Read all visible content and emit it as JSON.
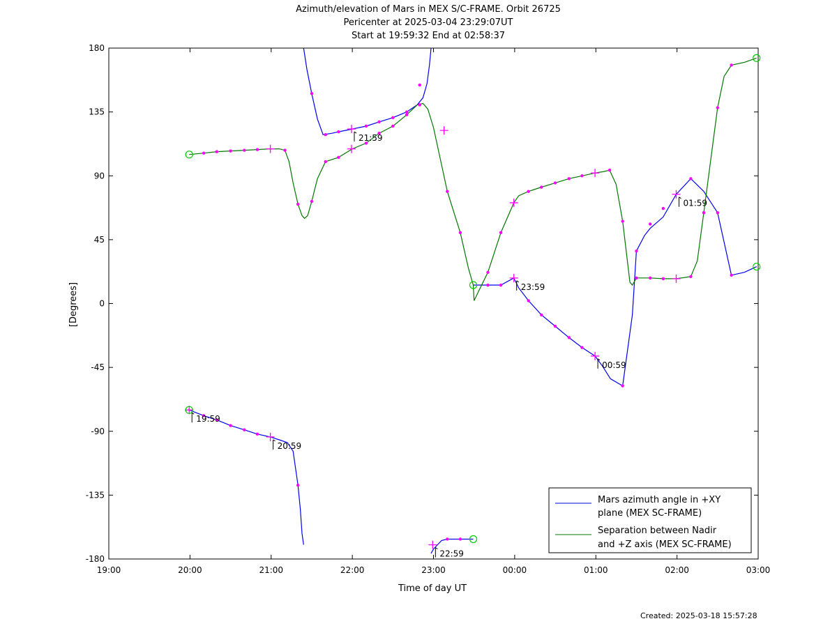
{
  "chart_data": {
    "type": "line",
    "title": [
      "Azimuth/elevation of Mars in MEX S/C-FRAME.  Orbit 26725",
      "Pericenter at 2025-03-04 23:29:07UT",
      "Start at 19:59:32 End at 02:58:37"
    ],
    "xlabel": "Time of day UT",
    "ylabel": "[Degrees]",
    "xlim": [
      19.0,
      27.0
    ],
    "ylim": [
      -180,
      180
    ],
    "x_ticks": [
      19,
      20,
      21,
      22,
      23,
      24,
      25,
      26,
      27
    ],
    "x_tick_labels": [
      "19:00",
      "20:00",
      "21:00",
      "22:00",
      "23:00",
      "00:00",
      "01:00",
      "02:00",
      "03:00"
    ],
    "y_ticks": [
      180,
      135,
      90,
      45,
      0,
      -45,
      -90,
      -135,
      -180
    ],
    "y_tick_labels": [
      "180",
      "135",
      "90",
      "45",
      "0",
      "-45",
      "-90",
      "-135",
      "-180"
    ],
    "legend_position": "bottom-right",
    "series": [
      {
        "name": "Mars azimuth angle in +XY plane (MEX SC-FRAME)",
        "legend_lines": [
          "Mars azimuth angle in +XY",
          "plane (MEX SC-FRAME)"
        ],
        "color": "#0000ee",
        "segments": [
          [
            [
              19.99,
              -75
            ],
            [
              20.17,
              -79
            ],
            [
              20.33,
              -82
            ],
            [
              20.5,
              -86
            ],
            [
              20.67,
              -89
            ],
            [
              20.83,
              -92
            ],
            [
              20.99,
              -94
            ],
            [
              21.1,
              -96
            ],
            [
              21.2,
              -98
            ],
            [
              21.27,
              -104
            ],
            [
              21.33,
              -128
            ],
            [
              21.36,
              -145
            ],
            [
              21.38,
              -162
            ],
            [
              21.4,
              -170
            ]
          ],
          [
            [
              21.4,
              180
            ],
            [
              21.44,
              165
            ],
            [
              21.5,
              148
            ],
            [
              21.57,
              130
            ],
            [
              21.64,
              119
            ],
            [
              21.75,
              120
            ],
            [
              21.83,
              121
            ],
            [
              22.0,
              123
            ],
            [
              22.17,
              125
            ],
            [
              22.33,
              128
            ],
            [
              22.5,
              131
            ],
            [
              22.67,
              135
            ],
            [
              22.8,
              140
            ],
            [
              22.87,
              145
            ],
            [
              22.92,
              155
            ],
            [
              22.95,
              168
            ],
            [
              22.97,
              180
            ]
          ],
          [
            [
              22.97,
              -176
            ],
            [
              23.0,
              -173
            ],
            [
              23.1,
              -167
            ],
            [
              23.17,
              -166
            ],
            [
              23.33,
              -166
            ],
            [
              23.49,
              -166
            ]
          ],
          [
            [
              23.49,
              13
            ],
            [
              23.67,
              13
            ],
            [
              23.83,
              13
            ],
            [
              23.99,
              18
            ],
            [
              24.05,
              11
            ],
            [
              24.17,
              2
            ],
            [
              24.33,
              -8
            ],
            [
              24.5,
              -16
            ],
            [
              24.67,
              -24
            ],
            [
              24.83,
              -31
            ],
            [
              24.99,
              -37
            ],
            [
              25.08,
              -44
            ],
            [
              25.18,
              -53
            ],
            [
              25.33,
              -58
            ],
            [
              25.45,
              -8
            ],
            [
              25.5,
              37
            ],
            [
              25.6,
              48
            ],
            [
              25.67,
              53
            ],
            [
              25.83,
              61
            ],
            [
              25.99,
              77
            ],
            [
              26.17,
              88
            ],
            [
              26.33,
              79
            ],
            [
              26.5,
              64
            ],
            [
              26.67,
              20
            ],
            [
              26.83,
              22
            ],
            [
              26.98,
              26
            ]
          ]
        ]
      },
      {
        "name": "Separation between Nadir and +Z axis (MEX SC-FRAME)",
        "legend_lines": [
          "Separation between Nadir",
          "and +Z axis (MEX SC-FRAME)"
        ],
        "color": "#007700",
        "segments": [
          [
            [
              19.99,
              105
            ],
            [
              20.17,
              106
            ],
            [
              20.33,
              107
            ],
            [
              20.5,
              107.5
            ],
            [
              20.67,
              108
            ],
            [
              20.83,
              108.5
            ],
            [
              20.99,
              109
            ],
            [
              21.1,
              109
            ],
            [
              21.17,
              108
            ],
            [
              21.22,
              100
            ],
            [
              21.27,
              85
            ],
            [
              21.33,
              70
            ],
            [
              21.38,
              62
            ],
            [
              21.41,
              60
            ],
            [
              21.45,
              62
            ],
            [
              21.5,
              72
            ],
            [
              21.57,
              88
            ],
            [
              21.67,
              100
            ],
            [
              21.83,
              103
            ],
            [
              22.0,
              109
            ],
            [
              22.17,
              113
            ],
            [
              22.33,
              120
            ],
            [
              22.5,
              125
            ],
            [
              22.67,
              133
            ],
            [
              22.8,
              140
            ],
            [
              22.87,
              141
            ],
            [
              22.93,
              137
            ],
            [
              23.0,
              124
            ],
            [
              23.17,
              79
            ],
            [
              23.33,
              50
            ],
            [
              23.43,
              25
            ],
            [
              23.49,
              13
            ],
            [
              23.5,
              2
            ],
            [
              23.55,
              8
            ],
            [
              23.67,
              22
            ],
            [
              23.83,
              50
            ],
            [
              23.99,
              71
            ],
            [
              24.05,
              76
            ],
            [
              24.17,
              79
            ],
            [
              24.33,
              82
            ],
            [
              24.5,
              85
            ],
            [
              24.67,
              88
            ],
            [
              24.83,
              90
            ],
            [
              24.99,
              92
            ],
            [
              25.1,
              93
            ],
            [
              25.17,
              94
            ],
            [
              25.25,
              84
            ],
            [
              25.33,
              58
            ],
            [
              25.38,
              34
            ],
            [
              25.42,
              15
            ],
            [
              25.45,
              13
            ],
            [
              25.5,
              18
            ],
            [
              25.67,
              18
            ],
            [
              25.83,
              17.5
            ],
            [
              25.99,
              17.5
            ],
            [
              26.17,
              19
            ],
            [
              26.25,
              30
            ],
            [
              26.33,
              64
            ],
            [
              26.5,
              138
            ],
            [
              26.58,
              160
            ],
            [
              26.67,
              168
            ],
            [
              26.83,
              170
            ],
            [
              26.98,
              173
            ]
          ]
        ]
      }
    ],
    "point_markers": {
      "color": "#ff00ff",
      "points": [
        [
          20.17,
          -79
        ],
        [
          20.33,
          -82
        ],
        [
          20.5,
          -86
        ],
        [
          20.67,
          -89
        ],
        [
          20.83,
          -92
        ],
        [
          21.33,
          -128
        ],
        [
          21.5,
          148
        ],
        [
          21.67,
          119
        ],
        [
          21.83,
          121
        ],
        [
          22.17,
          125
        ],
        [
          22.33,
          128
        ],
        [
          22.5,
          131
        ],
        [
          22.67,
          135
        ],
        [
          22.83,
          140
        ],
        [
          22.83,
          154
        ],
        [
          23.17,
          -166
        ],
        [
          23.33,
          -166
        ],
        [
          23.67,
          13
        ],
        [
          23.83,
          13
        ],
        [
          24.17,
          2
        ],
        [
          24.33,
          -8
        ],
        [
          24.5,
          -16
        ],
        [
          24.67,
          -24
        ],
        [
          24.83,
          -31
        ],
        [
          25.33,
          -58
        ],
        [
          25.5,
          37
        ],
        [
          25.67,
          56
        ],
        [
          25.83,
          67
        ],
        [
          26.17,
          88
        ],
        [
          26.33,
          64
        ],
        [
          26.5,
          64
        ],
        [
          26.67,
          20
        ],
        [
          20.17,
          106
        ],
        [
          20.33,
          107
        ],
        [
          20.5,
          107.5
        ],
        [
          20.67,
          108
        ],
        [
          20.83,
          108.5
        ],
        [
          21.17,
          108
        ],
        [
          21.33,
          70
        ],
        [
          21.5,
          72
        ],
        [
          21.67,
          100
        ],
        [
          21.83,
          103
        ],
        [
          22.17,
          113
        ],
        [
          22.33,
          120
        ],
        [
          22.5,
          125
        ],
        [
          22.67,
          133
        ],
        [
          22.83,
          140
        ],
        [
          23.17,
          79
        ],
        [
          23.33,
          50
        ],
        [
          23.67,
          22
        ],
        [
          23.83,
          50
        ],
        [
          24.17,
          79
        ],
        [
          24.33,
          82
        ],
        [
          24.5,
          85
        ],
        [
          24.67,
          88
        ],
        [
          24.83,
          90
        ],
        [
          25.17,
          94
        ],
        [
          25.33,
          58
        ],
        [
          25.5,
          18
        ],
        [
          25.67,
          18
        ],
        [
          25.83,
          17.5
        ],
        [
          26.17,
          19
        ],
        [
          26.33,
          64
        ],
        [
          26.5,
          138
        ],
        [
          26.67,
          168
        ]
      ]
    },
    "hour_markers": {
      "color": "#ff00ff",
      "points": [
        [
          19.99,
          -75
        ],
        [
          20.99,
          -94
        ],
        [
          21.99,
          123
        ],
        [
          22.99,
          -170
        ],
        [
          23.99,
          18
        ],
        [
          24.99,
          -37
        ],
        [
          25.99,
          77
        ],
        [
          20.99,
          109
        ],
        [
          21.99,
          109
        ],
        [
          23.13,
          122
        ],
        [
          23.99,
          71
        ],
        [
          24.99,
          92
        ],
        [
          25.99,
          17.5
        ]
      ]
    },
    "endpoint_markers": {
      "color": "#00cc00",
      "points": [
        [
          19.99,
          -75
        ],
        [
          19.99,
          105
        ],
        [
          23.49,
          -166
        ],
        [
          23.49,
          13
        ],
        [
          26.98,
          26
        ],
        [
          26.98,
          173
        ]
      ]
    },
    "annotations": [
      {
        "label": "19:59",
        "x": 19.99,
        "y": -75
      },
      {
        "label": "20:59",
        "x": 20.99,
        "y": -94
      },
      {
        "label": "21:59",
        "x": 21.99,
        "y": 123
      },
      {
        "label": "22:59",
        "x": 22.99,
        "y": -170
      },
      {
        "label": "23:59",
        "x": 23.99,
        "y": 18
      },
      {
        "label": "00:59",
        "x": 24.99,
        "y": -37
      },
      {
        "label": "01:59",
        "x": 25.99,
        "y": 77
      }
    ]
  },
  "footer": {
    "created": "Created: 2025-03-18 15:57:28"
  }
}
